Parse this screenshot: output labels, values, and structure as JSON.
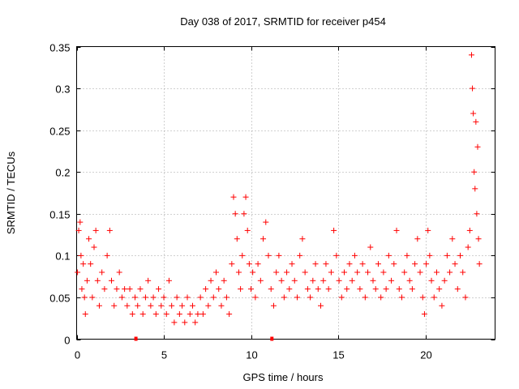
{
  "chart_data": {
    "type": "scatter",
    "title": "Day 038 of 2017, SRMTID for receiver p454",
    "xlabel": "GPS time / hours",
    "ylabel": "SRMTID / TECUs",
    "xlim": [
      0,
      24
    ],
    "ylim": [
      0,
      0.35
    ],
    "xticks": [
      0,
      5,
      10,
      15,
      20
    ],
    "xtick_labels": [
      "0",
      "5",
      "10",
      "15",
      "20"
    ],
    "yticks": [
      0,
      0.05,
      0.1,
      0.15,
      0.2,
      0.25,
      0.3,
      0.35
    ],
    "ytick_labels": [
      "0",
      "0.05",
      "0.1",
      "0.15",
      "0.2",
      "0.25",
      "0.3",
      "0.35"
    ],
    "grid": true,
    "marker": "+",
    "color": "#ff0000",
    "series": [
      {
        "name": "SRMTID",
        "points": [
          [
            0.05,
            0.08
          ],
          [
            0.12,
            0.13
          ],
          [
            0.2,
            0.14
          ],
          [
            0.25,
            0.1
          ],
          [
            0.3,
            0.06
          ],
          [
            0.38,
            0.09
          ],
          [
            0.45,
            0.05
          ],
          [
            0.5,
            0.03
          ],
          [
            0.6,
            0.07
          ],
          [
            0.7,
            0.12
          ],
          [
            0.8,
            0.09
          ],
          [
            0.9,
            0.05
          ],
          [
            1.0,
            0.11
          ],
          [
            1.1,
            0.13
          ],
          [
            1.2,
            0.07
          ],
          [
            1.3,
            0.04
          ],
          [
            1.45,
            0.08
          ],
          [
            1.6,
            0.06
          ],
          [
            1.75,
            0.1
          ],
          [
            1.9,
            0.13
          ],
          [
            2.0,
            0.07
          ],
          [
            2.15,
            0.04
          ],
          [
            2.3,
            0.06
          ],
          [
            2.45,
            0.08
          ],
          [
            2.6,
            0.05
          ],
          [
            2.75,
            0.06
          ],
          [
            2.9,
            0.04
          ],
          [
            3.05,
            0.06
          ],
          [
            3.2,
            0.03
          ],
          [
            3.35,
            0.05
          ],
          [
            3.5,
            0.04
          ],
          [
            3.65,
            0.06
          ],
          [
            3.8,
            0.03
          ],
          [
            3.95,
            0.05
          ],
          [
            4.1,
            0.07
          ],
          [
            4.25,
            0.04
          ],
          [
            4.4,
            0.05
          ],
          [
            4.55,
            0.03
          ],
          [
            4.7,
            0.06
          ],
          [
            4.85,
            0.04
          ],
          [
            5.0,
            0.05
          ],
          [
            5.15,
            0.03
          ],
          [
            5.3,
            0.07
          ],
          [
            5.45,
            0.04
          ],
          [
            5.6,
            0.02
          ],
          [
            5.75,
            0.05
          ],
          [
            5.9,
            0.03
          ],
          [
            6.05,
            0.04
          ],
          [
            6.2,
            0.02
          ],
          [
            6.35,
            0.05
          ],
          [
            6.5,
            0.03
          ],
          [
            6.65,
            0.04
          ],
          [
            6.8,
            0.02
          ],
          [
            6.95,
            0.03
          ],
          [
            7.1,
            0.05
          ],
          [
            7.25,
            0.03
          ],
          [
            7.4,
            0.06
          ],
          [
            7.55,
            0.04
          ],
          [
            7.7,
            0.07
          ],
          [
            7.85,
            0.05
          ],
          [
            8.0,
            0.08
          ],
          [
            8.15,
            0.06
          ],
          [
            8.3,
            0.04
          ],
          [
            8.45,
            0.07
          ],
          [
            8.6,
            0.05
          ],
          [
            8.75,
            0.03
          ],
          [
            8.9,
            0.09
          ],
          [
            9.0,
            0.17
          ],
          [
            9.1,
            0.15
          ],
          [
            9.2,
            0.12
          ],
          [
            9.3,
            0.08
          ],
          [
            9.4,
            0.06
          ],
          [
            9.5,
            0.1
          ],
          [
            9.6,
            0.15
          ],
          [
            9.7,
            0.17
          ],
          [
            9.8,
            0.13
          ],
          [
            9.9,
            0.09
          ],
          [
            10.0,
            0.06
          ],
          [
            10.1,
            0.08
          ],
          [
            10.25,
            0.05
          ],
          [
            10.4,
            0.09
          ],
          [
            10.55,
            0.07
          ],
          [
            10.7,
            0.12
          ],
          [
            10.85,
            0.14
          ],
          [
            11.0,
            0.1
          ],
          [
            11.15,
            0.06
          ],
          [
            11.3,
            0.04
          ],
          [
            11.45,
            0.08
          ],
          [
            11.6,
            0.1
          ],
          [
            11.75,
            0.07
          ],
          [
            11.9,
            0.05
          ],
          [
            12.05,
            0.08
          ],
          [
            12.2,
            0.06
          ],
          [
            12.35,
            0.09
          ],
          [
            12.5,
            0.07
          ],
          [
            12.65,
            0.05
          ],
          [
            12.8,
            0.1
          ],
          [
            12.95,
            0.12
          ],
          [
            13.1,
            0.08
          ],
          [
            13.25,
            0.06
          ],
          [
            13.4,
            0.05
          ],
          [
            13.55,
            0.07
          ],
          [
            13.7,
            0.09
          ],
          [
            13.85,
            0.06
          ],
          [
            14.0,
            0.04
          ],
          [
            14.15,
            0.07
          ],
          [
            14.3,
            0.09
          ],
          [
            14.45,
            0.06
          ],
          [
            14.6,
            0.08
          ],
          [
            14.75,
            0.13
          ],
          [
            14.9,
            0.1
          ],
          [
            15.05,
            0.07
          ],
          [
            15.2,
            0.05
          ],
          [
            15.35,
            0.08
          ],
          [
            15.5,
            0.06
          ],
          [
            15.65,
            0.09
          ],
          [
            15.8,
            0.07
          ],
          [
            15.95,
            0.1
          ],
          [
            16.1,
            0.08
          ],
          [
            16.25,
            0.06
          ],
          [
            16.4,
            0.09
          ],
          [
            16.55,
            0.05
          ],
          [
            16.7,
            0.08
          ],
          [
            16.85,
            0.11
          ],
          [
            17.0,
            0.07
          ],
          [
            17.15,
            0.06
          ],
          [
            17.3,
            0.09
          ],
          [
            17.45,
            0.05
          ],
          [
            17.6,
            0.08
          ],
          [
            17.75,
            0.06
          ],
          [
            17.9,
            0.1
          ],
          [
            18.05,
            0.07
          ],
          [
            18.2,
            0.09
          ],
          [
            18.35,
            0.13
          ],
          [
            18.5,
            0.06
          ],
          [
            18.65,
            0.05
          ],
          [
            18.8,
            0.08
          ],
          [
            18.95,
            0.1
          ],
          [
            19.1,
            0.07
          ],
          [
            19.25,
            0.06
          ],
          [
            19.4,
            0.09
          ],
          [
            19.55,
            0.12
          ],
          [
            19.7,
            0.08
          ],
          [
            19.85,
            0.05
          ],
          [
            19.95,
            0.03
          ],
          [
            20.05,
            0.09
          ],
          [
            20.15,
            0.13
          ],
          [
            20.25,
            0.1
          ],
          [
            20.35,
            0.07
          ],
          [
            20.5,
            0.05
          ],
          [
            20.65,
            0.08
          ],
          [
            20.8,
            0.06
          ],
          [
            20.95,
            0.04
          ],
          [
            21.1,
            0.07
          ],
          [
            21.25,
            0.1
          ],
          [
            21.4,
            0.08
          ],
          [
            21.55,
            0.12
          ],
          [
            21.7,
            0.09
          ],
          [
            21.85,
            0.06
          ],
          [
            22.0,
            0.1
          ],
          [
            22.15,
            0.08
          ],
          [
            22.3,
            0.05
          ],
          [
            22.45,
            0.11
          ],
          [
            22.55,
            0.13
          ],
          [
            22.65,
            0.34
          ],
          [
            22.7,
            0.3
          ],
          [
            22.75,
            0.27
          ],
          [
            22.8,
            0.2
          ],
          [
            22.85,
            0.18
          ],
          [
            22.9,
            0.26
          ],
          [
            22.95,
            0.15
          ],
          [
            23.0,
            0.23
          ],
          [
            23.05,
            0.12
          ],
          [
            23.1,
            0.09
          ]
        ]
      }
    ],
    "baseline_markers": [
      [
        3.4,
        0
      ],
      [
        11.2,
        0
      ]
    ]
  }
}
